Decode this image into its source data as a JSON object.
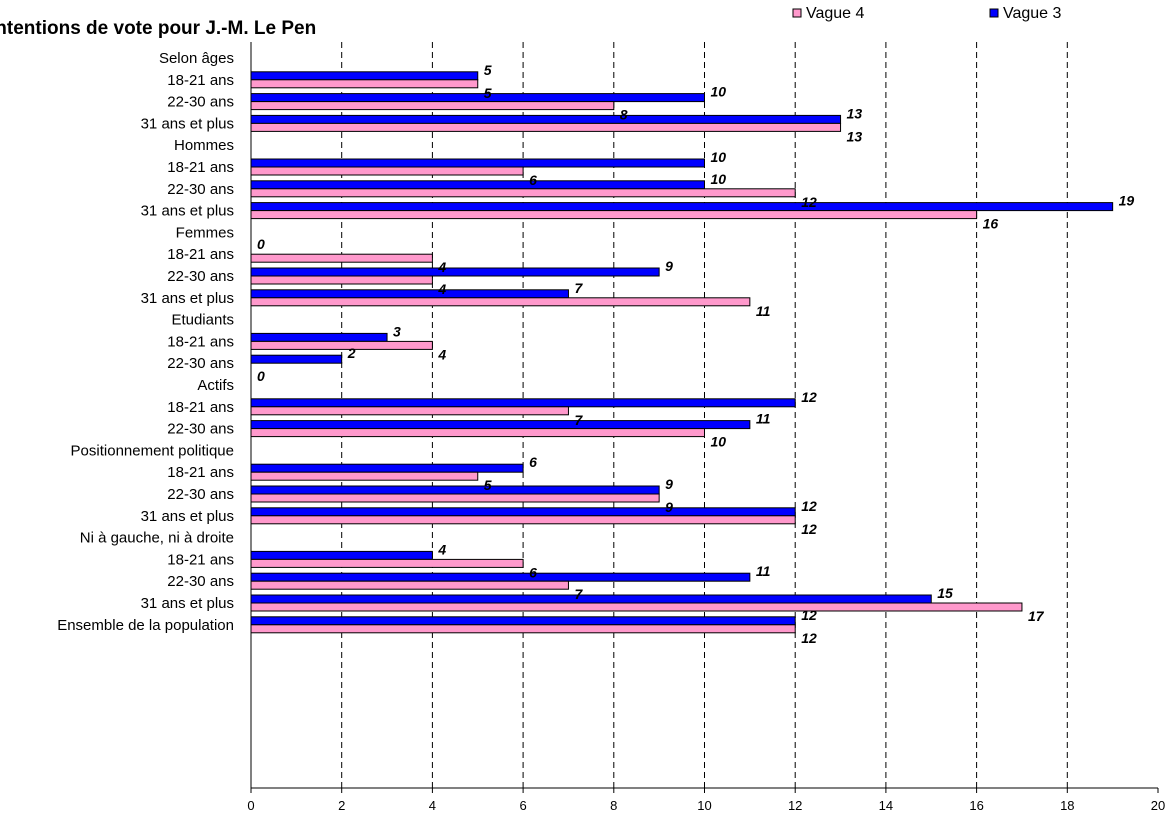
{
  "chart_data": {
    "type": "bar",
    "orientation": "horizontal",
    "title": "Intentions de vote pour J.-M. Le Pen",
    "xlim": [
      0,
      20
    ],
    "xticks": [
      0,
      2,
      4,
      6,
      8,
      10,
      12,
      14,
      16,
      18,
      20
    ],
    "grid": "vertical dashed",
    "legend_placement": "top-right",
    "series": [
      {
        "name": "Vague 4",
        "color": "#ff99cc"
      },
      {
        "name": "Vague 3",
        "color": "#0000ff"
      }
    ],
    "rows": [
      {
        "label": "Selon âges",
        "header": true
      },
      {
        "label": "18-21 ans",
        "vague3": 5,
        "vague4": 5
      },
      {
        "label": "22-30 ans",
        "vague3": 10,
        "vague4": 8
      },
      {
        "label": "31 ans et plus",
        "vague3": 13,
        "vague4": 13
      },
      {
        "label": "Hommes",
        "header": true
      },
      {
        "label": "18-21 ans",
        "vague3": 10,
        "vague4": 6
      },
      {
        "label": "22-30 ans",
        "vague3": 10,
        "vague4": 12
      },
      {
        "label": "31 ans et plus",
        "vague3": 19,
        "vague4": 16
      },
      {
        "label": "Femmes",
        "header": true
      },
      {
        "label": "18-21 ans",
        "vague3": 0,
        "vague4": 4
      },
      {
        "label": "22-30 ans",
        "vague3": 9,
        "vague4": 4
      },
      {
        "label": "31 ans et plus",
        "vague3": 7,
        "vague4": 11
      },
      {
        "label": "Etudiants",
        "header": true
      },
      {
        "label": "18-21 ans",
        "vague3": 3,
        "vague4": 4
      },
      {
        "label": "22-30 ans",
        "vague3": 2,
        "vague4": 0
      },
      {
        "label": "Actifs",
        "header": true
      },
      {
        "label": "18-21 ans",
        "vague3": 12,
        "vague4": 7
      },
      {
        "label": "22-30 ans",
        "vague3": 11,
        "vague4": 10
      },
      {
        "label": "Positionnement politique",
        "header": true
      },
      {
        "label": "18-21 ans",
        "vague3": 6,
        "vague4": 5
      },
      {
        "label": "22-30 ans",
        "vague3": 9,
        "vague4": 9
      },
      {
        "label": "31 ans et plus",
        "vague3": 12,
        "vague4": 12
      },
      {
        "label": "Ni à gauche, ni à droite",
        "header": true
      },
      {
        "label": "18-21 ans",
        "vague3": 4,
        "vague4": 6
      },
      {
        "label": "22-30 ans",
        "vague3": 11,
        "vague4": 7
      },
      {
        "label": "31 ans et plus",
        "vague3": 15,
        "vague4": 17
      },
      {
        "label": "Ensemble de la population",
        "vague3": 12,
        "vague4": 12
      }
    ]
  }
}
